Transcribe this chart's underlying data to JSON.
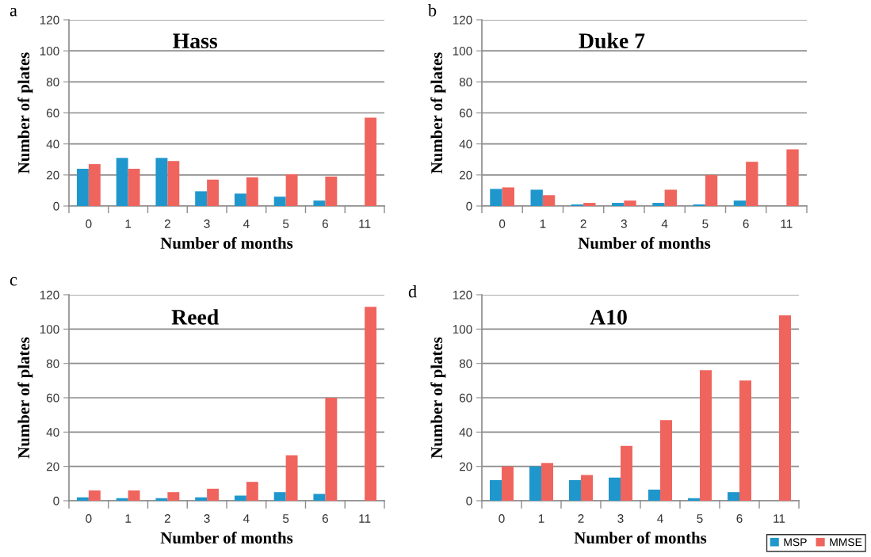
{
  "chart_data": [
    {
      "type": "bar",
      "title": "Hass",
      "annotations": [
        "a"
      ],
      "xlabel": "Number of months",
      "ylabel": "Number of plates",
      "categories": [
        "0",
        "1",
        "2",
        "3",
        "4",
        "5",
        "6",
        "11"
      ],
      "series": [
        {
          "color": "#1f97cc",
          "values": [
            24,
            31,
            31,
            9.5,
            8,
            6,
            3.5,
            null
          ]
        },
        {
          "color": "#f0645e",
          "values": [
            27,
            24,
            29,
            17,
            18.5,
            20.5,
            19,
            57
          ]
        }
      ],
      "ylim": [
        0,
        120
      ],
      "yticks": [
        0,
        20,
        40,
        60,
        80,
        100,
        120
      ],
      "grid": "y",
      "legend": false
    },
    {
      "type": "bar",
      "title": "Duke 7",
      "annotations": [
        "b"
      ],
      "xlabel": "Number of months",
      "ylabel": "Number of plates",
      "categories": [
        "0",
        "1",
        "2",
        "3",
        "4",
        "5",
        "6",
        "11"
      ],
      "series": [
        {
          "color": "#1f97cc",
          "values": [
            11,
            10.5,
            1,
            2,
            2,
            1,
            3.5,
            null
          ]
        },
        {
          "color": "#f0645e",
          "values": [
            12,
            7,
            2,
            3.5,
            10.5,
            20,
            28.5,
            36.5
          ]
        }
      ],
      "ylim": [
        0,
        120
      ],
      "yticks": [
        0,
        20,
        40,
        60,
        80,
        100,
        120
      ],
      "grid": "y",
      "legend": false
    },
    {
      "type": "bar",
      "title": "Reed",
      "annotations": [
        "c"
      ],
      "xlabel": "Number of months",
      "ylabel": "Number of plates",
      "categories": [
        "0",
        "1",
        "2",
        "3",
        "4",
        "5",
        "6",
        "11"
      ],
      "series": [
        {
          "color": "#1f97cc",
          "values": [
            2,
            1.5,
            1.5,
            2,
            3,
            5,
            4,
            null
          ]
        },
        {
          "color": "#f0645e",
          "values": [
            6,
            6,
            5,
            7,
            11,
            26.5,
            60,
            113
          ]
        }
      ],
      "ylim": [
        0,
        120
      ],
      "yticks": [
        0,
        20,
        40,
        60,
        80,
        100,
        120
      ],
      "grid": "y",
      "legend": false
    },
    {
      "type": "bar",
      "title": "A10",
      "annotations": [
        "d"
      ],
      "xlabel": "Number of months",
      "ylabel": "Number of plates",
      "categories": [
        "0",
        "1",
        "2",
        "3",
        "4",
        "5",
        "6",
        "11"
      ],
      "series": [
        {
          "name": "MSP",
          "color": "#1f97cc",
          "values": [
            12,
            20,
            12,
            13.5,
            6.5,
            1.5,
            5,
            null
          ]
        },
        {
          "name": "MMSE",
          "color": "#f0645e",
          "values": [
            20,
            22,
            15,
            32,
            47,
            76,
            70,
            108
          ]
        }
      ],
      "ylim": [
        0,
        120
      ],
      "yticks": [
        0,
        20,
        40,
        60,
        80,
        100,
        120
      ],
      "grid": "y",
      "legend": "bottom right"
    }
  ]
}
